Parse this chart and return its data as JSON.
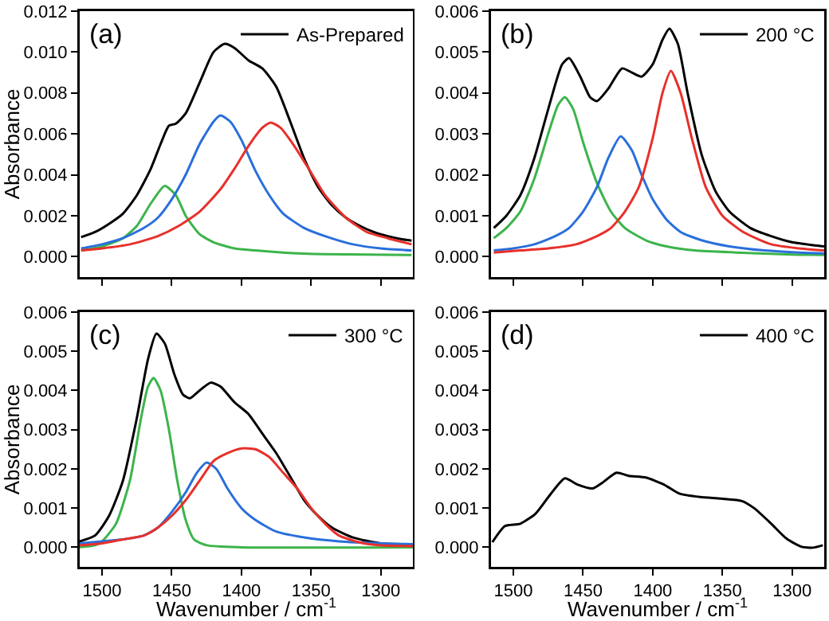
{
  "chart_data": [
    {
      "type": "line",
      "ylabel": "Absorbance",
      "annotations": [
        "(a)"
      ],
      "legend": "top right",
      "tick_labels": "y",
      "xlim": [
        1516,
        1277
      ],
      "xticks": [
        1500,
        1450,
        1400,
        1350,
        1300
      ],
      "ylim": [
        -0.001,
        0.012
      ],
      "yticks": [
        {
          "value": 0,
          "label": "0.000"
        },
        {
          "value": 0.002,
          "label": "0.002"
        },
        {
          "value": 0.004,
          "label": "0.004"
        },
        {
          "value": 0.006,
          "label": "0.006"
        },
        {
          "value": 0.008,
          "label": "0.008"
        },
        {
          "value": 0.01,
          "label": "0.010"
        },
        {
          "value": 0.012,
          "label": "0.012"
        }
      ],
      "series": [
        {
          "name": "As-Prepared",
          "color": "#000000",
          "x": [
            1515,
            1505,
            1495,
            1485,
            1475,
            1465,
            1458,
            1452,
            1447,
            1440,
            1430,
            1420,
            1412,
            1405,
            1395,
            1385,
            1375,
            1365,
            1355,
            1345,
            1335,
            1325,
            1315,
            1305,
            1295,
            1285,
            1278
          ],
          "values": [
            0.00095,
            0.0012,
            0.0016,
            0.0021,
            0.003,
            0.0043,
            0.0055,
            0.0064,
            0.0065,
            0.007,
            0.0085,
            0.01,
            0.0104,
            0.0102,
            0.0096,
            0.0092,
            0.0083,
            0.0066,
            0.0048,
            0.0034,
            0.0025,
            0.0019,
            0.0015,
            0.0012,
            0.001,
            0.00085,
            0.00078
          ]
        },
        {
          "color": "#3cb44b",
          "x": [
            1515,
            1500,
            1485,
            1475,
            1465,
            1455,
            1447,
            1440,
            1430,
            1420,
            1405,
            1390,
            1370,
            1340,
            1310,
            1278
          ],
          "values": [
            0.0003,
            0.0005,
            0.0009,
            0.0015,
            0.0026,
            0.00346,
            0.003,
            0.002,
            0.0011,
            0.0007,
            0.0004,
            0.0003,
            0.0002,
            0.00012,
            0.0001,
            8e-05
          ]
        },
        {
          "color": "#2a6fdb",
          "x": [
            1515,
            1500,
            1485,
            1470,
            1460,
            1450,
            1440,
            1430,
            1420,
            1415,
            1408,
            1400,
            1390,
            1380,
            1370,
            1355,
            1340,
            1320,
            1300,
            1278
          ],
          "values": [
            0.0004,
            0.0006,
            0.0009,
            0.0014,
            0.0019,
            0.0028,
            0.004,
            0.0055,
            0.0066,
            0.0069,
            0.0066,
            0.0057,
            0.0042,
            0.003,
            0.0021,
            0.0014,
            0.001,
            0.0006,
            0.0004,
            0.0003
          ]
        },
        {
          "color": "#e8302a",
          "x": [
            1515,
            1500,
            1480,
            1460,
            1445,
            1430,
            1415,
            1405,
            1395,
            1385,
            1379,
            1372,
            1362,
            1350,
            1340,
            1325,
            1310,
            1295,
            1278
          ],
          "values": [
            0.0003,
            0.0004,
            0.0006,
            0.001,
            0.0015,
            0.0022,
            0.0033,
            0.0043,
            0.0054,
            0.0063,
            0.00655,
            0.0063,
            0.0054,
            0.0041,
            0.003,
            0.0019,
            0.0012,
            0.0009,
            0.0006
          ]
        }
      ]
    },
    {
      "type": "line",
      "annotations": [
        "(b)"
      ],
      "legend": "top right",
      "tick_labels": "y",
      "xlim": [
        1516,
        1277
      ],
      "xticks": [
        1500,
        1450,
        1400,
        1350,
        1300
      ],
      "ylim": [
        -0.0005,
        0.006
      ],
      "yticks": [
        {
          "value": 0,
          "label": "0.000"
        },
        {
          "value": 0.001,
          "label": "0.001"
        },
        {
          "value": 0.002,
          "label": "0.002"
        },
        {
          "value": 0.003,
          "label": "0.003"
        },
        {
          "value": 0.004,
          "label": "0.004"
        },
        {
          "value": 0.005,
          "label": "0.005"
        },
        {
          "value": 0.006,
          "label": "0.006"
        }
      ],
      "series": [
        {
          "name": "200 °C",
          "color": "#000000",
          "x": [
            1514,
            1505,
            1495,
            1485,
            1475,
            1465,
            1460,
            1452,
            1445,
            1440,
            1432,
            1422,
            1415,
            1408,
            1400,
            1393,
            1388,
            1382,
            1375,
            1365,
            1355,
            1345,
            1330,
            1315,
            1300,
            1285,
            1277
          ],
          "values": [
            0.0007,
            0.001,
            0.0015,
            0.0024,
            0.0036,
            0.0047,
            0.00485,
            0.0044,
            0.0039,
            0.0038,
            0.0041,
            0.0046,
            0.0045,
            0.0044,
            0.0047,
            0.0053,
            0.00557,
            0.0052,
            0.004,
            0.0025,
            0.0016,
            0.0011,
            0.0007,
            0.0005,
            0.00035,
            0.00028,
            0.00025
          ]
        },
        {
          "color": "#3cb44b",
          "x": [
            1514,
            1505,
            1495,
            1485,
            1475,
            1468,
            1463,
            1457,
            1450,
            1440,
            1430,
            1420,
            1405,
            1390,
            1370,
            1340,
            1300,
            1277
          ],
          "values": [
            0.00045,
            0.0007,
            0.0011,
            0.0019,
            0.003,
            0.0037,
            0.0039,
            0.0036,
            0.0028,
            0.0018,
            0.0011,
            0.0007,
            0.0004,
            0.00025,
            0.00015,
            0.0001,
            5e-05,
            4e-05
          ]
        },
        {
          "color": "#2a6fdb",
          "x": [
            1514,
            1500,
            1485,
            1470,
            1460,
            1450,
            1440,
            1432,
            1423,
            1415,
            1408,
            1400,
            1390,
            1380,
            1365,
            1345,
            1320,
            1295,
            1277
          ],
          "values": [
            0.00015,
            0.0002,
            0.0003,
            0.0005,
            0.0007,
            0.0011,
            0.0017,
            0.0024,
            0.00294,
            0.0026,
            0.002,
            0.0014,
            0.0009,
            0.0006,
            0.0004,
            0.00025,
            0.00015,
            0.0001,
            8e-05
          ]
        },
        {
          "color": "#e8302a",
          "x": [
            1514,
            1495,
            1475,
            1455,
            1440,
            1430,
            1420,
            1410,
            1400,
            1393,
            1387,
            1380,
            1372,
            1362,
            1350,
            1335,
            1315,
            1295,
            1277
          ],
          "values": [
            0.0001,
            0.00015,
            0.0002,
            0.0003,
            0.0005,
            0.0007,
            0.0011,
            0.0017,
            0.0029,
            0.004,
            0.00454,
            0.004,
            0.0029,
            0.0017,
            0.001,
            0.0006,
            0.0003,
            0.0002,
            0.00015
          ]
        }
      ]
    },
    {
      "type": "line",
      "xlabel": "Wavenumber / cm$^{-1}$",
      "ylabel": "Absorbance",
      "annotations": [
        "(c)"
      ],
      "legend": "top right",
      "xlim": [
        1516,
        1277
      ],
      "xticks": [
        1500,
        1450,
        1400,
        1350,
        1300
      ],
      "ylim": [
        -0.0005,
        0.006
      ],
      "yticks": [
        {
          "value": 0,
          "label": "0.000"
        },
        {
          "value": 0.001,
          "label": "0.001"
        },
        {
          "value": 0.002,
          "label": "0.002"
        },
        {
          "value": 0.003,
          "label": "0.003"
        },
        {
          "value": 0.004,
          "label": "0.004"
        },
        {
          "value": 0.005,
          "label": "0.005"
        },
        {
          "value": 0.006,
          "label": "0.006"
        }
      ],
      "series": [
        {
          "name": "300 °C",
          "color": "#000000",
          "x": [
            1516,
            1505,
            1495,
            1485,
            1475,
            1467,
            1461,
            1455,
            1448,
            1442,
            1437,
            1430,
            1422,
            1415,
            1405,
            1395,
            1385,
            1375,
            1365,
            1355,
            1345,
            1335,
            1320,
            1300,
            1277
          ],
          "values": [
            0.00015,
            0.0003,
            0.0008,
            0.0017,
            0.0033,
            0.0048,
            0.00545,
            0.0052,
            0.0044,
            0.0039,
            0.0038,
            0.004,
            0.0042,
            0.0041,
            0.0037,
            0.0034,
            0.0029,
            0.0024,
            0.0018,
            0.0012,
            0.0008,
            0.0005,
            0.00025,
            0.0001,
            8e-05
          ]
        },
        {
          "color": "#3cb44b",
          "x": [
            1516,
            1505,
            1500,
            1490,
            1480,
            1472,
            1467,
            1463,
            1458,
            1452,
            1446,
            1440,
            1434,
            1425,
            1400,
            1277
          ],
          "values": [
            0,
            5e-05,
            0.00015,
            0.0006,
            0.0017,
            0.0033,
            0.0041,
            0.00432,
            0.004,
            0.003,
            0.0017,
            0.0007,
            0.0002,
            5e-05,
            0,
            0
          ]
        },
        {
          "color": "#2a6fdb",
          "x": [
            1516,
            1500,
            1485,
            1470,
            1460,
            1450,
            1440,
            1432,
            1425,
            1418,
            1410,
            1400,
            1390,
            1375,
            1355,
            1330,
            1300,
            1277
          ],
          "values": [
            0.0001,
            0.00015,
            0.0002,
            0.0003,
            0.0005,
            0.0009,
            0.0014,
            0.0019,
            0.00216,
            0.002,
            0.0015,
            0.001,
            0.0007,
            0.0004,
            0.00025,
            0.00015,
            0.0001,
            8e-05
          ]
        },
        {
          "color": "#e8302a",
          "x": [
            1516,
            1500,
            1485,
            1470,
            1460,
            1450,
            1440,
            1430,
            1420,
            1410,
            1400,
            1390,
            1380,
            1370,
            1360,
            1350,
            1340,
            1330,
            1315,
            1300,
            1277
          ],
          "values": [
            5e-05,
            0.0001,
            0.0002,
            0.0003,
            0.0005,
            0.0008,
            0.0012,
            0.0017,
            0.0022,
            0.0024,
            0.00252,
            0.0025,
            0.0023,
            0.0019,
            0.0015,
            0.001,
            0.0006,
            0.0003,
            0.00012,
            5e-05,
            3e-05
          ]
        }
      ]
    },
    {
      "type": "line",
      "xlabel": "Wavenumber / cm$^{-1}$",
      "annotations": [
        "(d)"
      ],
      "legend": "top right",
      "xlim": [
        1516,
        1277
      ],
      "xticks": [
        1500,
        1450,
        1400,
        1350,
        1300
      ],
      "ylim": [
        -0.0005,
        0.006
      ],
      "yticks": [
        {
          "value": 0,
          "label": "0.000"
        },
        {
          "value": 0.001,
          "label": "0.001"
        },
        {
          "value": 0.002,
          "label": "0.002"
        },
        {
          "value": 0.003,
          "label": "0.003"
        },
        {
          "value": 0.004,
          "label": "0.004"
        },
        {
          "value": 0.005,
          "label": "0.005"
        },
        {
          "value": 0.006,
          "label": "0.006"
        }
      ],
      "series": [
        {
          "name": "400 °C",
          "color": "#000000",
          "x": [
            1515,
            1506,
            1495,
            1484,
            1473,
            1463,
            1454,
            1443,
            1436,
            1426,
            1417,
            1405,
            1392,
            1381,
            1366,
            1351,
            1336,
            1327,
            1315,
            1304,
            1293,
            1285,
            1278
          ],
          "values": [
            0.00013,
            0.00054,
            0.0006,
            0.00086,
            0.00137,
            0.00176,
            0.0016,
            0.0015,
            0.00165,
            0.0019,
            0.00182,
            0.00178,
            0.0016,
            0.00137,
            0.00128,
            0.00124,
            0.00118,
            0.00099,
            0.0006,
            0.00022,
            1e-05,
            -1e-05,
            5e-05
          ]
        }
      ]
    }
  ]
}
